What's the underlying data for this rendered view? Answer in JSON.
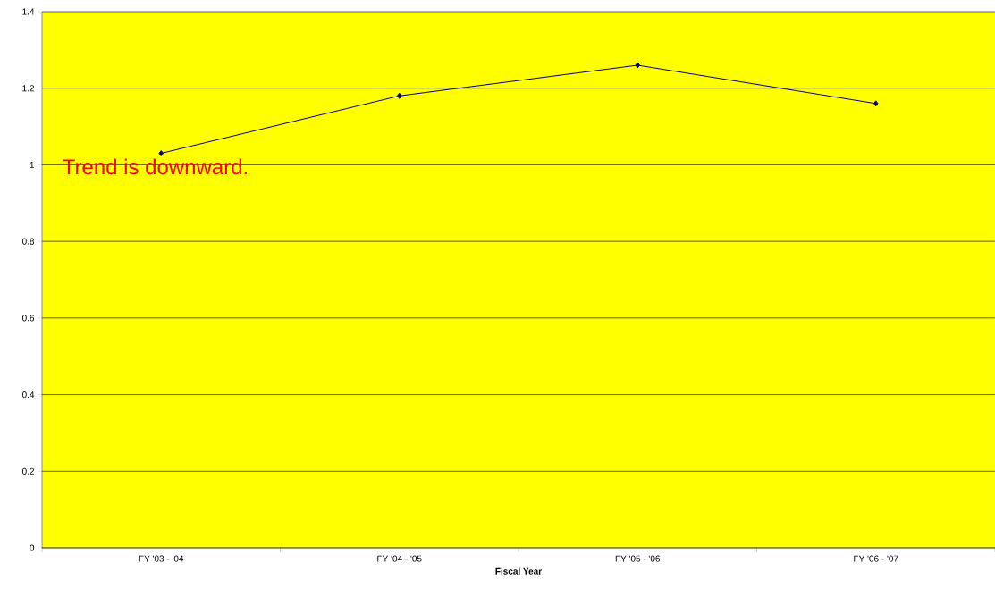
{
  "chart_data": {
    "type": "line",
    "xlabel": "Fiscal Year",
    "categories": [
      "FY '03 - '04",
      "FY '04 - '05",
      "FY '05 - '06",
      "FY '06 - '07"
    ],
    "series": [
      {
        "color": "#000080",
        "values": [
          1.03,
          1.18,
          1.26,
          1.16
        ]
      }
    ],
    "ylim": [
      0,
      1.4
    ],
    "yticks": [
      0,
      0.2,
      0.4,
      0.6,
      0.8,
      1,
      1.2,
      1.4
    ],
    "grid": "y",
    "marker": "diamond",
    "line_style": "solid",
    "annotations": [
      "Trend is downward."
    ]
  }
}
